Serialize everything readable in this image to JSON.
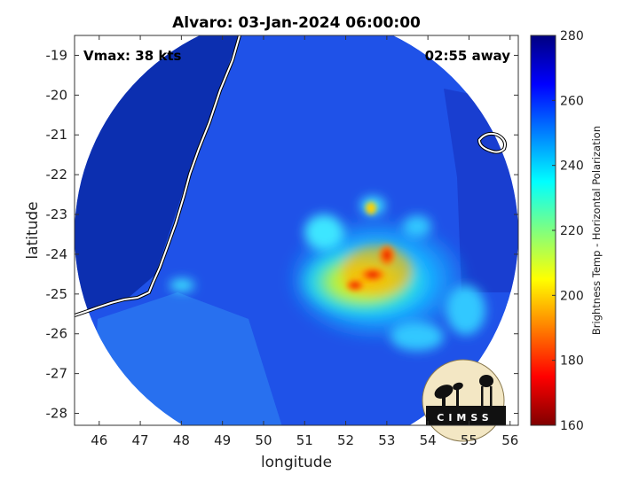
{
  "chart_data": {
    "type": "heatmap",
    "title": "Alvaro: 03-Jan-2024 06:00:00",
    "annotations": {
      "vmax": "Vmax: 38 kts",
      "time_offset": "02:55 away"
    },
    "xlabel": "longitude",
    "ylabel": "latitude",
    "xlim": [
      45.4,
      56.2
    ],
    "ylim": [
      -28.3,
      -18.5
    ],
    "xticks": [
      46,
      47,
      48,
      49,
      50,
      51,
      52,
      53,
      54,
      55,
      56
    ],
    "yticks": [
      -19,
      -20,
      -21,
      -22,
      -23,
      -24,
      -25,
      -26,
      -27,
      -28
    ],
    "colorbar": {
      "label": "Brightness Temp - Horizontal Polarization",
      "range": [
        160,
        280
      ],
      "ticks": [
        160,
        180,
        200,
        220,
        240,
        260,
        280
      ],
      "colormap": "jet"
    },
    "storm_center": {
      "lon": 52.7,
      "lat": -24.8
    },
    "scan_center": {
      "lon": 50.8,
      "lat": -23.4
    },
    "min_brightness_temp": 180,
    "background_brightness_temp": 265,
    "logo_text": "CIMSS",
    "grid": false
  }
}
